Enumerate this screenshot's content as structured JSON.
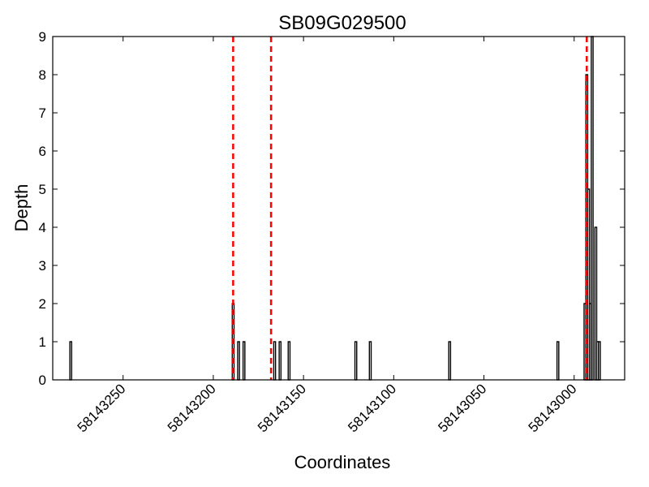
{
  "chart_data": {
    "type": "bar",
    "title": "SB09G029500",
    "xlabel": "Coordinates",
    "ylabel": "Depth",
    "x_axis_reversed": true,
    "xlim": [
      58143289,
      58142972
    ],
    "ylim": [
      0,
      9
    ],
    "xticks": [
      58143250,
      58143200,
      58143150,
      58143100,
      58143050,
      58143000
    ],
    "xtick_labels": [
      "58143250",
      "58143200",
      "58143150",
      "58143100",
      "58143050",
      "58143000"
    ],
    "yticks": [
      0,
      1,
      2,
      3,
      4,
      5,
      6,
      7,
      8,
      9
    ],
    "ytick_labels": [
      "0",
      "1",
      "2",
      "3",
      "4",
      "5",
      "6",
      "7",
      "8",
      "9"
    ],
    "bar_color": "#000000",
    "grid": false,
    "series": [
      {
        "x": [
          58143279,
          58143189,
          58143186,
          58143183,
          58143166,
          58143163,
          58143158,
          58143121,
          58143113,
          58143069,
          58143009,
          58142994,
          58142993,
          58142992,
          58142991,
          58142990,
          58142988,
          58142987,
          58142986
        ],
        "values": [
          1,
          2,
          1,
          1,
          1,
          1,
          1,
          1,
          1,
          1,
          1,
          2,
          8,
          5,
          2,
          9,
          4,
          1,
          1
        ]
      }
    ],
    "reference_lines": {
      "color": "#ff0000",
      "style": "dashed",
      "x": [
        58143189,
        58143168,
        58142993
      ]
    }
  }
}
